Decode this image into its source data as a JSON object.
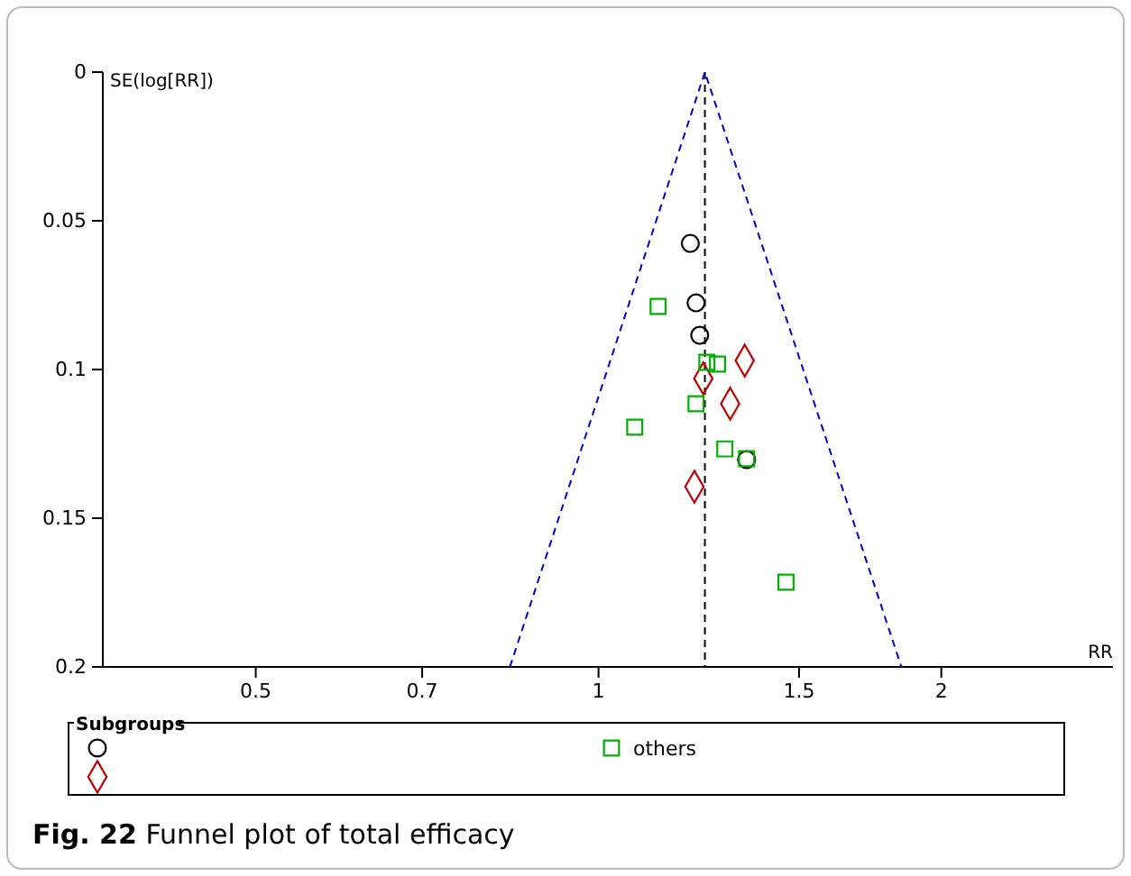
{
  "chart_data": {
    "type": "scatter",
    "title": "Fig. 22 Funnel plot of total efficacy",
    "xlabel": "RR",
    "ylabel": "SE(log[RR])",
    "legend_title": "Subgroups",
    "log": "x",
    "xlim": [
      0.367,
      2.83
    ],
    "xticks": [
      0.5,
      0.7,
      1,
      1.5,
      2
    ],
    "ylim": [
      0.2,
      0
    ],
    "yticks": [
      0,
      0.05,
      0.1,
      0.15,
      0.2
    ],
    "grid": false,
    "legend": "bottom",
    "ref_lines": [
      {
        "axis": "x",
        "value": 1.24,
        "color": "#000000",
        "line_style": "dashed"
      }
    ],
    "series": [
      {
        "marker": "circle",
        "color": "#000000",
        "x": [
          1.204,
          1.218,
          1.227,
          1.349
        ],
        "values": [
          0.0576,
          0.0776,
          0.0885,
          0.1303
        ]
      },
      {
        "marker": "diamond",
        "color": "#c00000",
        "x": [
          1.344,
          1.236,
          1.305,
          1.214
        ],
        "values": [
          0.097,
          0.103,
          0.1115,
          0.1394
        ]
      },
      {
        "name": "others",
        "marker": "square",
        "color": "#00b000",
        "x": [
          1.128,
          1.245,
          1.272,
          1.218,
          1.076,
          1.291,
          1.349,
          1.461
        ],
        "values": [
          0.0788,
          0.0976,
          0.0982,
          0.1115,
          0.1194,
          0.1267,
          0.13,
          0.1715
        ]
      },
      {
        "type": "line",
        "marker": "none",
        "line_style": "dashed",
        "color": "#0000cc",
        "x": [
          0.836,
          1.24,
          1.845
        ],
        "values": [
          0.2,
          0,
          0.2
        ]
      }
    ]
  }
}
